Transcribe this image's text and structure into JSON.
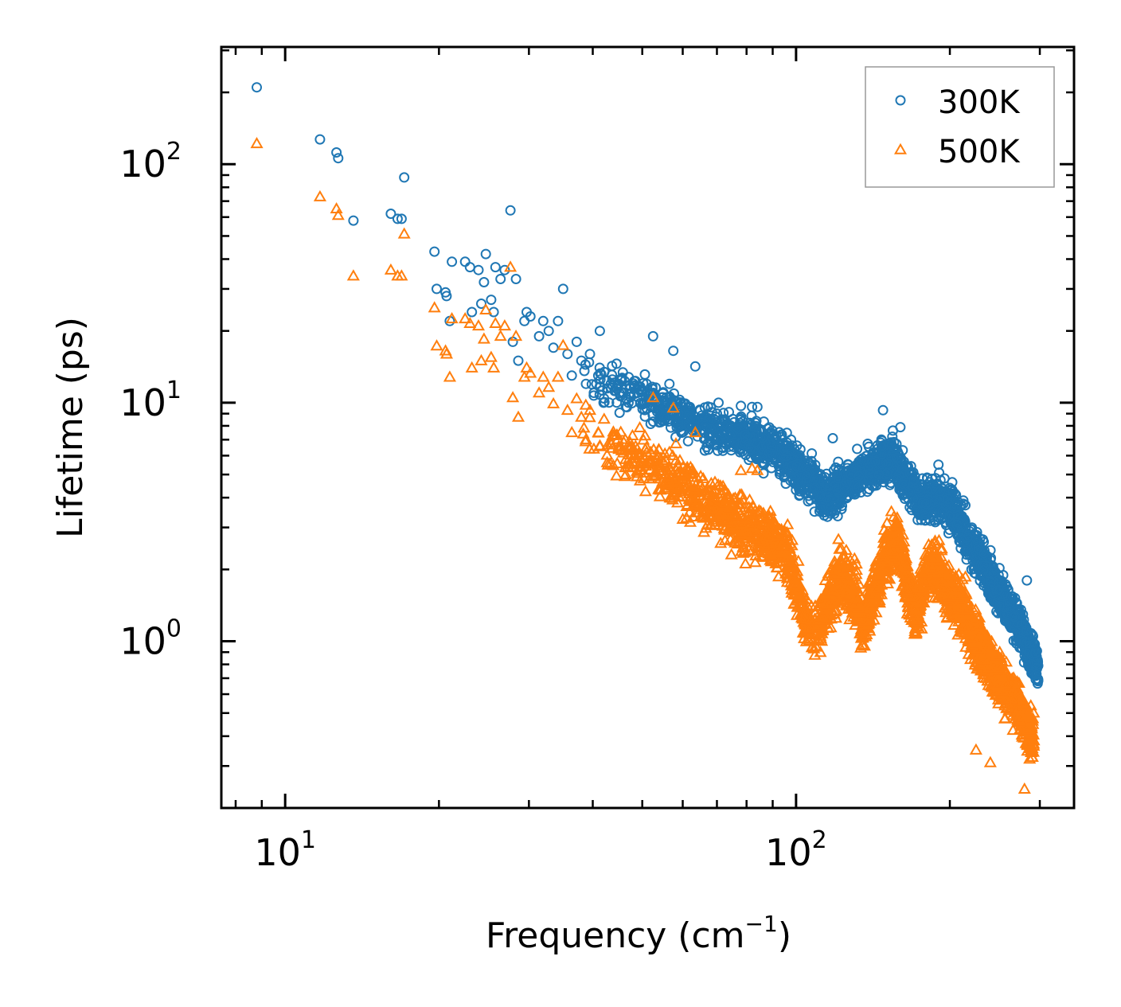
{
  "chart_data": {
    "type": "scatter",
    "title": "",
    "xlabel_main": "Frequency (cm",
    "xlabel_sup": "−1",
    "xlabel_close": ")",
    "ylabel": "Lifetime (ps)",
    "x_scale": "log",
    "y_scale": "log",
    "xlim": [
      7.5,
      350
    ],
    "ylim": [
      0.2,
      310
    ],
    "x_ticks": [
      {
        "value": 10,
        "base": "10",
        "exp": "1"
      },
      {
        "value": 100,
        "base": "10",
        "exp": "2"
      }
    ],
    "y_ticks": [
      {
        "value": 1,
        "base": "10",
        "exp": "0"
      },
      {
        "value": 10,
        "base": "10",
        "exp": "1"
      },
      {
        "value": 100,
        "base": "10",
        "exp": "2"
      }
    ],
    "legend_position": "top-right",
    "series": [
      {
        "name": "300K",
        "marker": "circle",
        "color": "#1f77b4",
        "points": [
          [
            8.8,
            210
          ],
          [
            11.7,
            127
          ],
          [
            12.6,
            112
          ],
          [
            12.7,
            106
          ],
          [
            13.6,
            58
          ],
          [
            16.1,
            62
          ],
          [
            16.6,
            59
          ],
          [
            16.9,
            59
          ],
          [
            17.1,
            88
          ],
          [
            19.6,
            43
          ],
          [
            19.8,
            30
          ],
          [
            20.6,
            29
          ],
          [
            20.7,
            28
          ],
          [
            21.0,
            22
          ],
          [
            21.2,
            39
          ],
          [
            22.5,
            39
          ],
          [
            23.0,
            37
          ],
          [
            23.2,
            24
          ],
          [
            23.9,
            36
          ],
          [
            24.2,
            26
          ],
          [
            24.5,
            32
          ],
          [
            24.7,
            42
          ],
          [
            25.3,
            27
          ],
          [
            25.6,
            24
          ],
          [
            25.8,
            37
          ],
          [
            26.4,
            33
          ],
          [
            26.9,
            36
          ],
          [
            27.6,
            64
          ],
          [
            27.9,
            18
          ],
          [
            28.3,
            33
          ],
          [
            28.6,
            15
          ],
          [
            29.4,
            22
          ],
          [
            29.7,
            24
          ],
          [
            30.2,
            23
          ],
          [
            31.4,
            19
          ],
          [
            32.0,
            22
          ],
          [
            32.8,
            20
          ],
          [
            33.5,
            17
          ],
          [
            34.2,
            22
          ],
          [
            35.0,
            30
          ],
          [
            35.7,
            16
          ],
          [
            36.4,
            13
          ],
          [
            37.2,
            18
          ],
          [
            38.0,
            15
          ],
          [
            38.8,
            12
          ],
          [
            39.5,
            16
          ],
          [
            40.2,
            11
          ],
          [
            41.0,
            13
          ],
          [
            41.3,
            20
          ],
          [
            42.0,
            10
          ],
          [
            43.4,
            12
          ],
          [
            45.0,
            12
          ],
          [
            47.0,
            10
          ],
          [
            49.0,
            11
          ],
          [
            51.0,
            12
          ],
          [
            52.5,
            19
          ],
          [
            54.0,
            10
          ],
          [
            56.5,
            12
          ],
          [
            57.5,
            16.5
          ],
          [
            60.0,
            9
          ],
          [
            62.0,
            9
          ],
          [
            63.5,
            14.2
          ],
          [
            67.0,
            8.5
          ],
          [
            70.5,
            10
          ],
          [
            74.0,
            8
          ],
          [
            78.0,
            9.7
          ],
          [
            82.0,
            9.6
          ],
          [
            84.0,
            9.6
          ],
          [
            89.0,
            7
          ],
          [
            96.0,
            6.8
          ],
          [
            118.0,
            7.1
          ],
          [
            148.0,
            9.3
          ],
          [
            160.0,
            7.9
          ],
          [
            190.0,
            5.5
          ],
          [
            283.0,
            1.8
          ]
        ],
        "trend": [
          [
            38,
            14
          ],
          [
            45,
            11.5
          ],
          [
            55,
            9.5
          ],
          [
            65,
            8
          ],
          [
            80,
            7
          ],
          [
            95,
            6
          ],
          [
            105,
            4.8
          ],
          [
            115,
            4
          ],
          [
            125,
            4.6
          ],
          [
            135,
            5.2
          ],
          [
            145,
            5.4
          ],
          [
            155,
            5.8
          ],
          [
            165,
            4.6
          ],
          [
            175,
            3.9
          ],
          [
            185,
            4
          ],
          [
            195,
            3.8
          ],
          [
            205,
            3.4
          ],
          [
            215,
            2.8
          ],
          [
            230,
            2.2
          ],
          [
            245,
            1.7
          ],
          [
            260,
            1.4
          ],
          [
            275,
            1.15
          ],
          [
            290,
            0.85
          ],
          [
            298,
            0.75
          ]
        ]
      },
      {
        "name": "500K",
        "marker": "triangle",
        "color": "#ff7f0e",
        "points": [
          [
            8.8,
            122
          ],
          [
            11.7,
            73
          ],
          [
            12.6,
            65
          ],
          [
            12.7,
            61
          ],
          [
            13.6,
            34
          ],
          [
            16.1,
            36
          ],
          [
            16.6,
            34
          ],
          [
            16.9,
            34
          ],
          [
            17.1,
            51
          ],
          [
            19.6,
            25
          ],
          [
            19.8,
            17.3
          ],
          [
            20.6,
            16.5
          ],
          [
            20.7,
            16
          ],
          [
            21.0,
            12.8
          ],
          [
            21.2,
            22.5
          ],
          [
            22.5,
            22.5
          ],
          [
            23.0,
            21.5
          ],
          [
            23.2,
            14
          ],
          [
            23.9,
            21
          ],
          [
            24.2,
            15
          ],
          [
            24.5,
            18.5
          ],
          [
            24.7,
            24.5
          ],
          [
            25.3,
            15.5
          ],
          [
            25.6,
            14
          ],
          [
            25.8,
            21.5
          ],
          [
            26.4,
            19
          ],
          [
            26.9,
            21
          ],
          [
            27.6,
            37
          ],
          [
            27.9,
            10.5
          ],
          [
            28.3,
            19
          ],
          [
            28.6,
            8.7
          ],
          [
            29.4,
            12.8
          ],
          [
            29.7,
            14
          ],
          [
            30.2,
            13.3
          ],
          [
            31.4,
            11
          ],
          [
            32.0,
            12.8
          ],
          [
            32.8,
            11.6
          ],
          [
            33.5,
            9.9
          ],
          [
            34.2,
            12.8
          ],
          [
            35.0,
            17.4
          ],
          [
            35.7,
            9.3
          ],
          [
            36.4,
            7.5
          ],
          [
            37.2,
            10.4
          ],
          [
            38.0,
            8.7
          ],
          [
            38.8,
            7
          ],
          [
            39.5,
            9.3
          ],
          [
            40.2,
            6.4
          ],
          [
            41.0,
            7.5
          ],
          [
            43.4,
            6.8
          ],
          [
            45.0,
            6.5
          ],
          [
            47.0,
            5.5
          ],
          [
            51.0,
            6.5
          ],
          [
            52.5,
            10.5
          ],
          [
            56.5,
            6.2
          ],
          [
            57.5,
            9.5
          ],
          [
            63.5,
            7.5
          ],
          [
            78.0,
            5.2
          ],
          [
            82.0,
            5.3
          ],
          [
            84.0,
            5.2
          ],
          [
            225.0,
            0.35
          ],
          [
            240.0,
            0.31
          ],
          [
            280.0,
            0.24
          ]
        ],
        "trend": [
          [
            38,
            8
          ],
          [
            45,
            6.5
          ],
          [
            55,
            5
          ],
          [
            65,
            4
          ],
          [
            75,
            3.2
          ],
          [
            85,
            2.8
          ],
          [
            95,
            2.5
          ],
          [
            100,
            1.7
          ],
          [
            105,
            1.2
          ],
          [
            110,
            1.1
          ],
          [
            115,
            1.4
          ],
          [
            122,
            1.9
          ],
          [
            130,
            1.6
          ],
          [
            135,
            1.15
          ],
          [
            140,
            1.5
          ],
          [
            150,
            2.3
          ],
          [
            158,
            2.7
          ],
          [
            165,
            1.8
          ],
          [
            172,
            1.3
          ],
          [
            180,
            1.9
          ],
          [
            190,
            2
          ],
          [
            200,
            1.6
          ],
          [
            210,
            1.4
          ],
          [
            225,
            1
          ],
          [
            240,
            0.8
          ],
          [
            255,
            0.65
          ],
          [
            270,
            0.55
          ],
          [
            285,
            0.42
          ],
          [
            292,
            0.38
          ]
        ]
      }
    ]
  }
}
